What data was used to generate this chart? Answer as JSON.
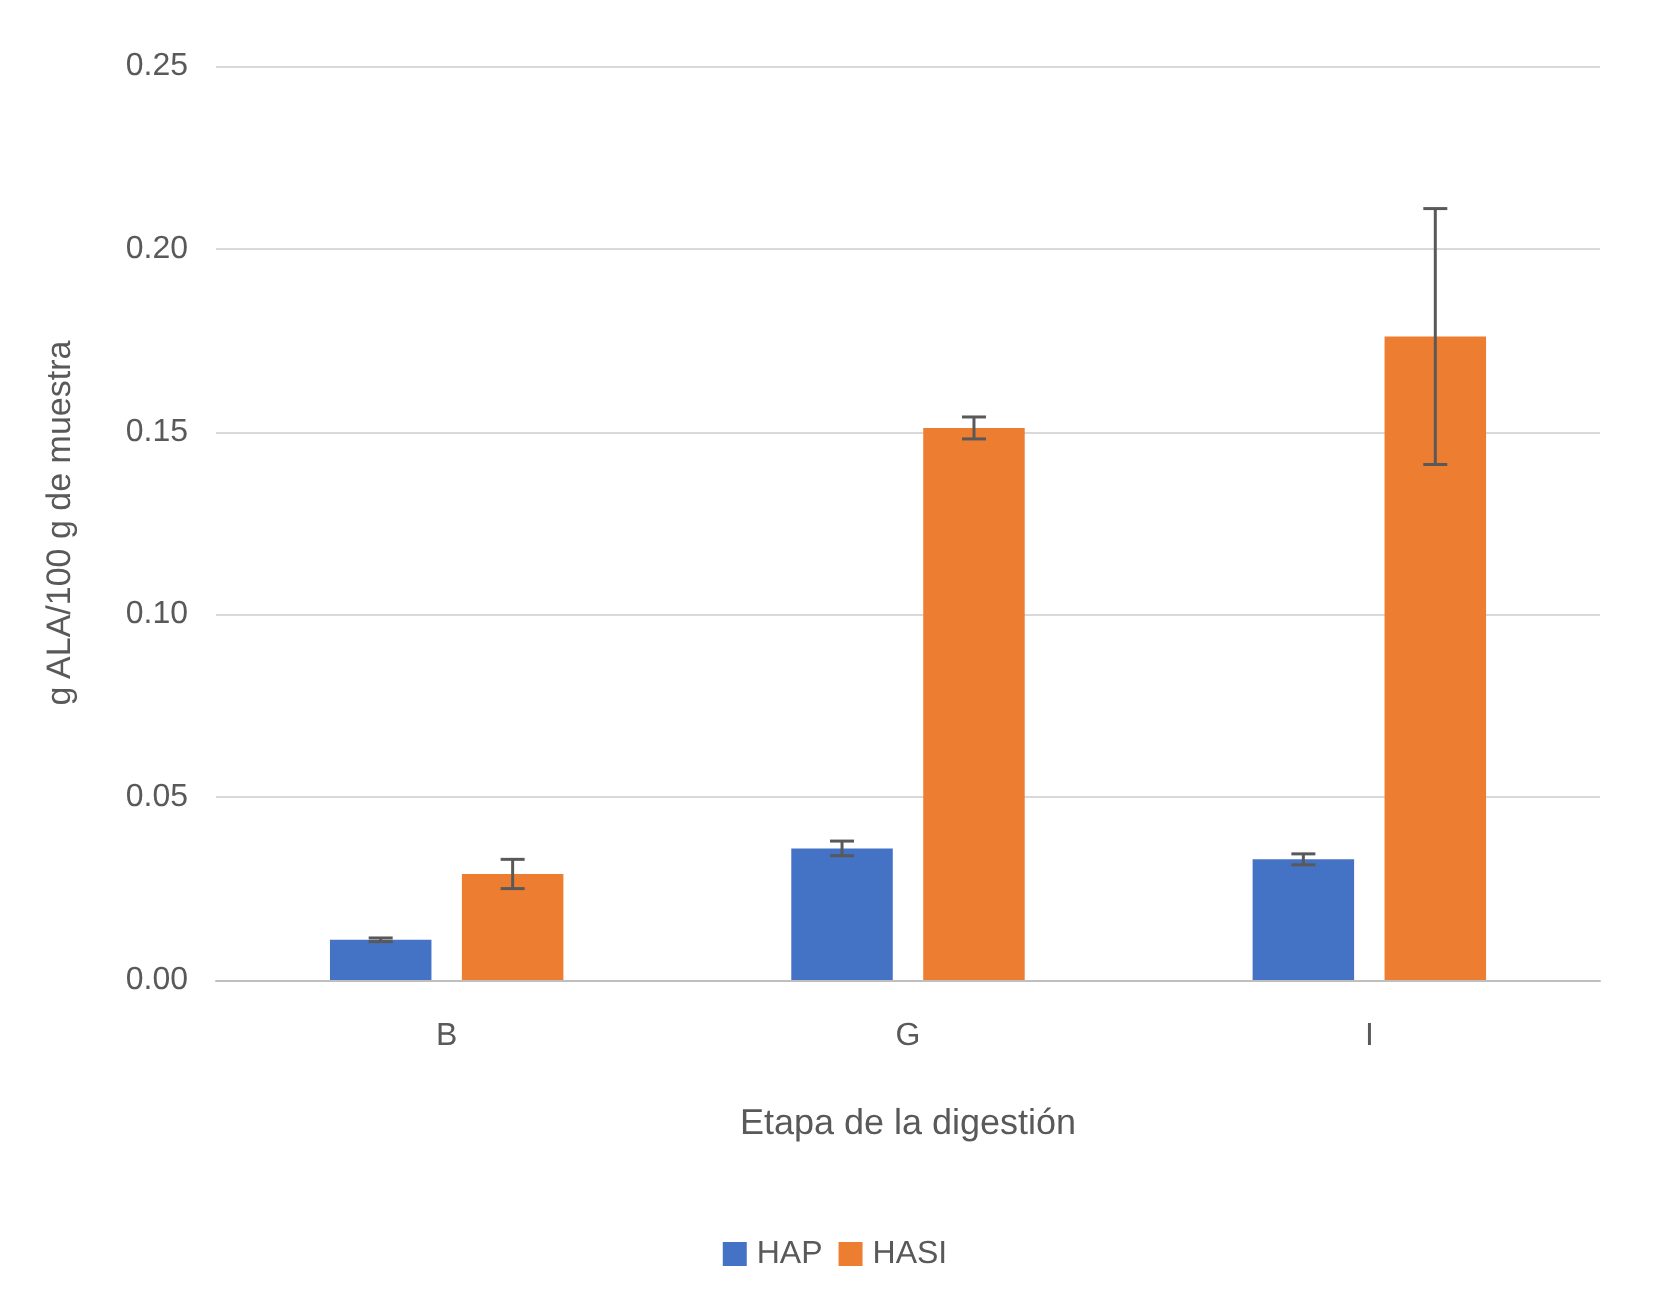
{
  "chart_data": {
    "type": "bar",
    "xlabel": "Etapa de la digestión",
    "ylabel": "g ALA/100 g de muestra",
    "categories": [
      "B",
      "G",
      "I"
    ],
    "series": [
      {
        "name": "HAP",
        "color": "#4472c4",
        "values": [
          0.011,
          0.036,
          0.033
        ],
        "errors": [
          0.0005,
          0.002,
          0.0015
        ]
      },
      {
        "name": "HASI",
        "color": "#ed7d31",
        "values": [
          0.029,
          0.151,
          0.176
        ],
        "errors": [
          0.004,
          0.003,
          0.035
        ]
      }
    ],
    "ylim": [
      0,
      0.25
    ],
    "yticks": [
      {
        "value": 0,
        "label": "0.00"
      },
      {
        "value": 0.05,
        "label": "0.05"
      },
      {
        "value": 0.1,
        "label": "0.10"
      },
      {
        "value": 0.15,
        "label": "0.15"
      },
      {
        "value": 0.2,
        "label": "0.20"
      },
      {
        "value": 0.25,
        "label": "0.25"
      }
    ],
    "grid": "y",
    "legend": "bottom"
  }
}
